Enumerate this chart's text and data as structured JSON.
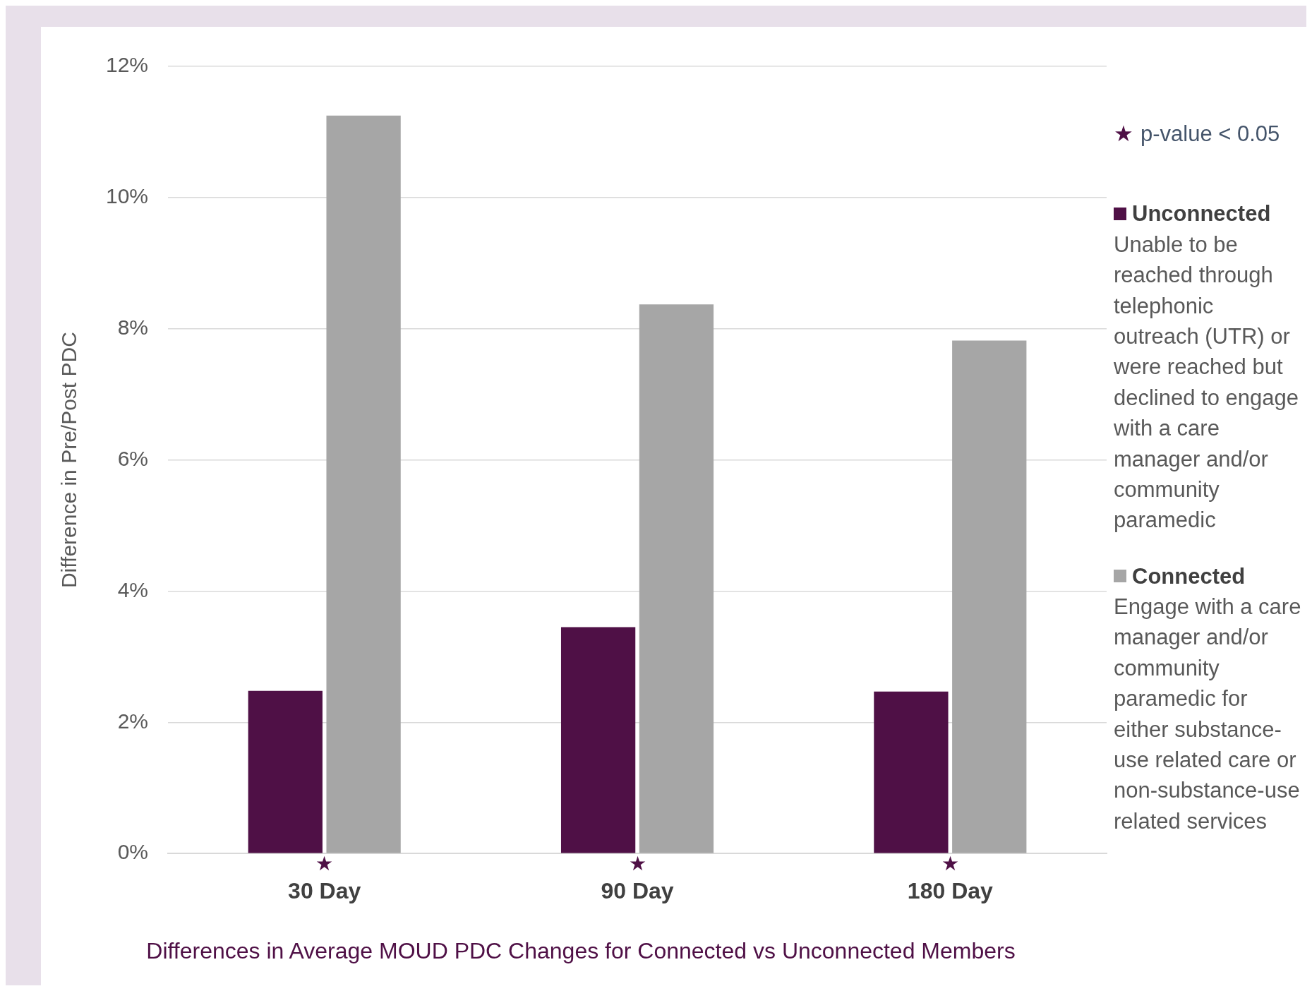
{
  "chart_data": {
    "type": "bar",
    "title": "Differences in Average MOUD PDC Changes for Connected vs Unconnected Members",
    "ylabel": "Difference in Pre/Post PDC",
    "categories": [
      "30 Day",
      "90 Day",
      "180 Day"
    ],
    "series": [
      {
        "name": "Unconnected",
        "color": "#4f1046",
        "values": [
          2.48,
          3.45,
          2.47
        ]
      },
      {
        "name": "Connected",
        "color": "#a6a6a6",
        "values": [
          11.25,
          8.37,
          7.82
        ]
      }
    ],
    "ylim": [
      0,
      12
    ],
    "yticks": [
      {
        "value": 0,
        "label": "0%"
      },
      {
        "value": 2,
        "label": "2%"
      },
      {
        "value": 4,
        "label": "4%"
      },
      {
        "value": 6,
        "label": "6%"
      },
      {
        "value": 8,
        "label": "8%"
      },
      {
        "value": 10,
        "label": "10%"
      },
      {
        "value": 12,
        "label": "12%"
      }
    ],
    "grid": "y",
    "legend": "right",
    "annotations": [
      "★",
      "★",
      "★",
      "p-value < 0.05",
      "Unable to be reached through telephonic outreach (UTR) or were reached but declined to engage with a care manager and/or community paramedic",
      "Engage with a care manager and/or community paramedic for either substance-use related care or non-substance-use related services"
    ]
  }
}
